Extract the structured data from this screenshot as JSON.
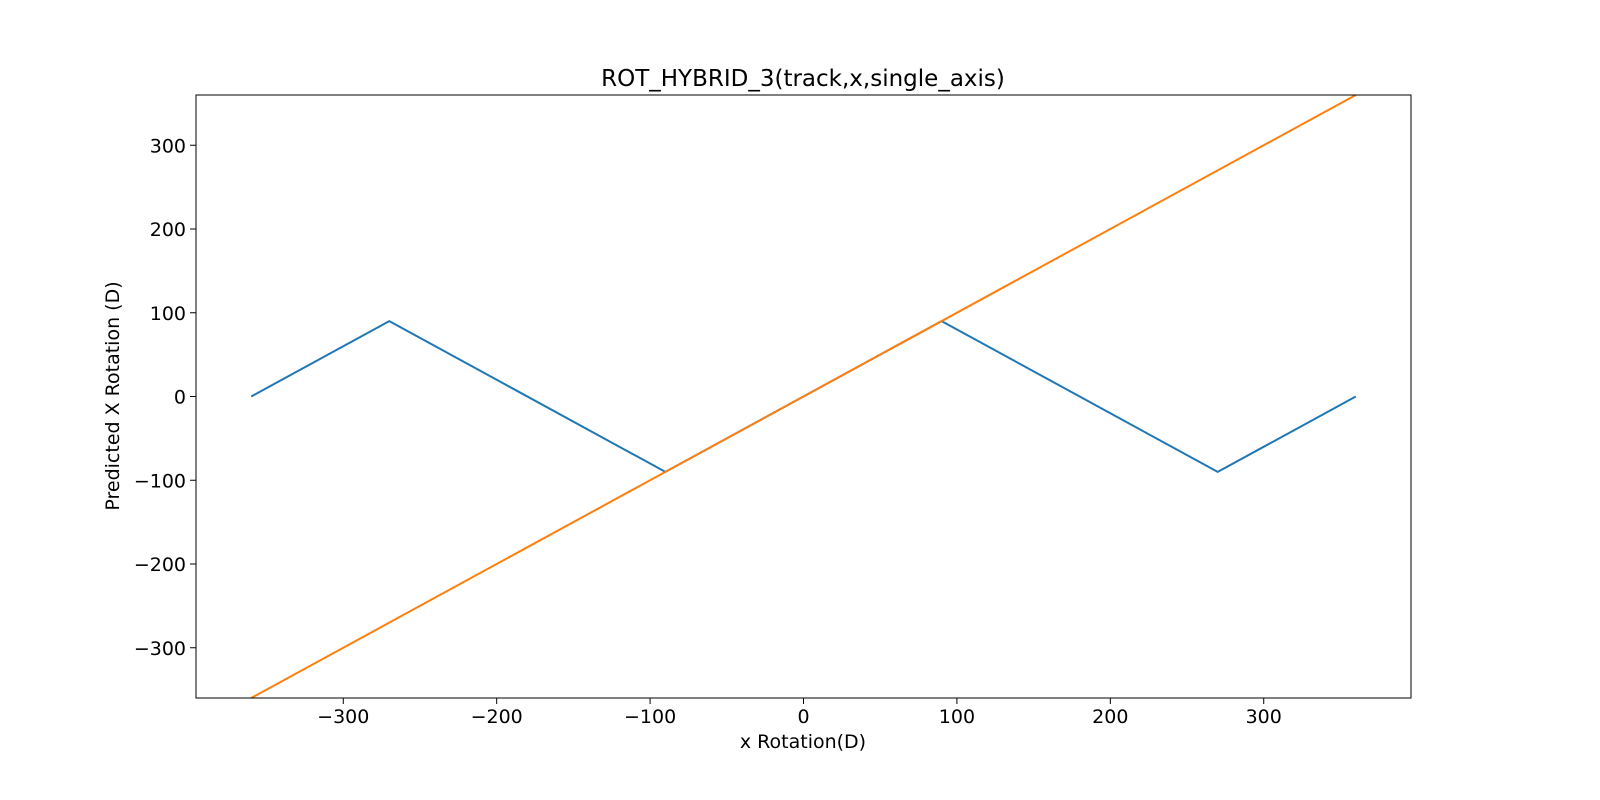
{
  "chart_data": {
    "type": "line",
    "title": "ROT_HYBRID_3(track,x,single_axis)",
    "xlabel": "x Rotation(D)",
    "ylabel": "Predicted X Rotation (D)",
    "xlim": [
      -396,
      396
    ],
    "ylim": [
      -360,
      360
    ],
    "xticks": [
      -300,
      -200,
      -100,
      0,
      100,
      200,
      300
    ],
    "yticks": [
      -300,
      -200,
      -100,
      0,
      100,
      200,
      300
    ],
    "grid": false,
    "legend": "none",
    "series": [
      {
        "color": "#1f77b4",
        "x": [
          -360,
          -270,
          -90,
          90,
          270,
          360
        ],
        "y": [
          0,
          90,
          -90,
          90,
          -90,
          0
        ]
      },
      {
        "color": "#ff7f0e",
        "x": [
          -360,
          360
        ],
        "y": [
          -360,
          360
        ]
      }
    ]
  }
}
